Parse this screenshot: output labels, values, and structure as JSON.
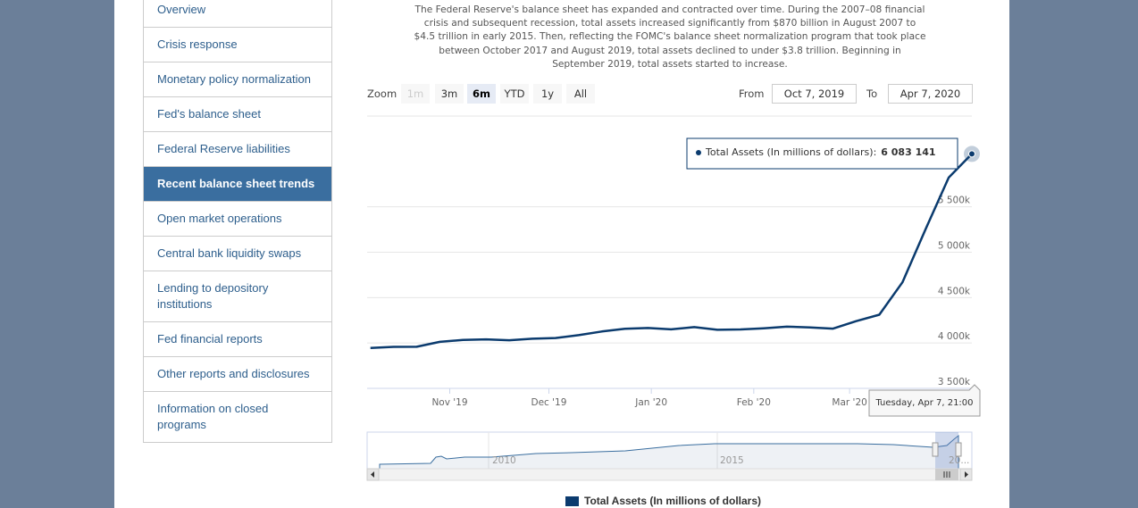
{
  "nav": {
    "items": [
      "Overview",
      "Crisis response",
      "Monetary policy normalization",
      "Fed's balance sheet",
      "Federal Reserve liabilities",
      "Recent balance sheet trends",
      "Open market operations",
      "Central bank liquidity swaps",
      "Lending to depository institutions",
      "Fed financial reports",
      "Other reports and disclosures",
      "Information on closed programs"
    ],
    "active": 5
  },
  "intro": {
    "lines": [
      "The Federal Reserve's balance sheet has expanded and contracted over time. During the 2007–08 financial",
      "crisis and subsequent recession, total assets increased significantly from $870 billion in August 2007 to",
      "$4.5 trillion in early 2015. Then, reflecting the FOMC's balance sheet normalization program that took place",
      "between October 2017 and August 2019, total assets declined to under $3.8 trillion. Beginning in",
      "September 2019, total assets started to increase."
    ]
  },
  "range_selector": {
    "zoom_label": "Zoom",
    "buttons": [
      "1m",
      "3m",
      "6m",
      "YTD",
      "1y",
      "All"
    ],
    "selected": 2,
    "disabled": [
      0
    ],
    "from_label": "From",
    "from": "Oct 7, 2019",
    "to_label": "To",
    "to": "Apr 7, 2020"
  },
  "chart_data": {
    "type": "line",
    "x": [
      "2019-10-08",
      "2019-10-15",
      "2019-10-22",
      "2019-10-29",
      "2019-11-05",
      "2019-11-12",
      "2019-11-19",
      "2019-11-26",
      "2019-12-03",
      "2019-12-10",
      "2019-12-17",
      "2019-12-24",
      "2019-12-31",
      "2020-01-07",
      "2020-01-14",
      "2020-01-21",
      "2020-01-28",
      "2020-02-04",
      "2020-02-11",
      "2020-02-18",
      "2020-02-25",
      "2020-03-03",
      "2020-03-10",
      "2020-03-17",
      "2020-03-24",
      "2020-03-31",
      "2020-04-07"
    ],
    "series": [
      {
        "name": "Total Assets (In millions of dollars)",
        "color": "#0b3b6e",
        "values": [
          3946000,
          3957000,
          3958000,
          4012000,
          4033000,
          4040000,
          4030000,
          4047000,
          4055000,
          4086000,
          4127000,
          4157000,
          4165000,
          4150000,
          4175000,
          4145000,
          4149000,
          4162000,
          4180000,
          4172000,
          4158000,
          4241000,
          4311000,
          4669000,
          5254000,
          5822000,
          6083141
        ],
        "value_labels": [
          null,
          null,
          null,
          null,
          null,
          null,
          null,
          null,
          null,
          null,
          null,
          null,
          null,
          null,
          null,
          null,
          null,
          null,
          null,
          null,
          null,
          null,
          null,
          null,
          null,
          null,
          "6 083 141"
        ]
      }
    ],
    "xlim": [
      "2019-10-07",
      "2020-04-07"
    ],
    "xticks": [
      {
        "value": "2019-11-01",
        "label": "Nov '19"
      },
      {
        "value": "2019-12-01",
        "label": "Dec '19"
      },
      {
        "value": "2020-01-01",
        "label": "Jan '20"
      },
      {
        "value": "2020-02-01",
        "label": "Feb '20"
      },
      {
        "value": "2020-03-01",
        "label": "Mar '20"
      }
    ],
    "ylim": [
      3500000,
      6500000
    ],
    "yticks": [
      {
        "value": 3500000,
        "label": "3 500k"
      },
      {
        "value": 4000000,
        "label": "4 000k"
      },
      {
        "value": 4500000,
        "label": "4 500k"
      },
      {
        "value": 5000000,
        "label": "5 000k"
      },
      {
        "value": 5500000,
        "label": "5 500k"
      }
    ],
    "grid": true,
    "tooltip": {
      "header": "Tuesday, Apr 7, 21:00",
      "separator": ":"
    },
    "navigator": {
      "labels": [
        "2010",
        "2015",
        "20..."
      ]
    }
  }
}
